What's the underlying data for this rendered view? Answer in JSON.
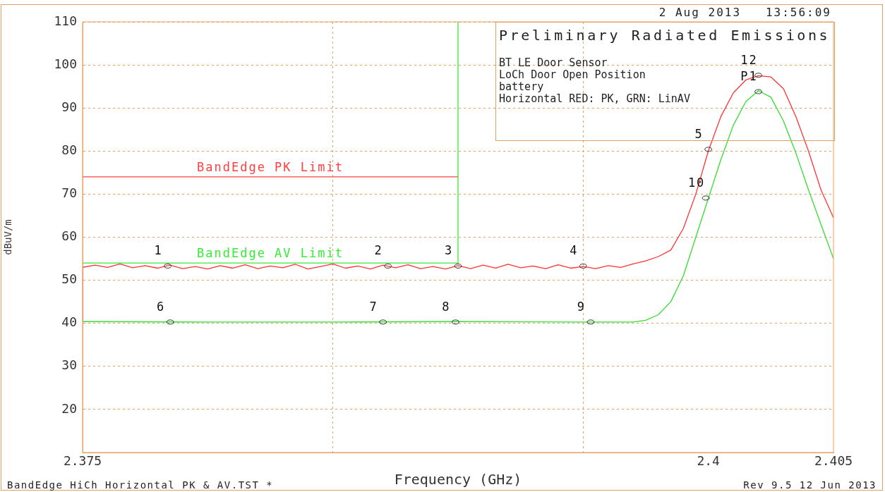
{
  "chart_data": {
    "type": "line",
    "title": "Preliminary Radiated Emissions",
    "xlabel": "Frequency (GHz)",
    "ylabel": "dBuV/m",
    "xlim": [
      2.375,
      2.405
    ],
    "xticks": [
      2.375,
      {
        "value": 2.385,
        "label": null
      },
      {
        "value": 2.395,
        "label": null
      },
      {
        "value": 2.4,
        "label": "2.4"
      },
      2.405
    ],
    "ylim": [
      10,
      110
    ],
    "yticks": [
      20,
      30,
      40,
      50,
      60,
      70,
      80,
      90,
      100,
      110
    ],
    "grid": true,
    "marker": "none",
    "line_style": "solid",
    "series": [
      {
        "name": "BandEdge PK Limit",
        "color": "#ff4040",
        "x": [
          2.375,
          2.39
        ],
        "values": [
          74,
          74
        ]
      },
      {
        "name": "BandEdge AV Limit",
        "color": "#33ee33",
        "x": [
          2.375,
          2.39,
          2.39
        ],
        "values": [
          54,
          54,
          110
        ]
      },
      {
        "color": "#ff3333",
        "x": [
          2.375,
          2.375,
          2.3755,
          2.376,
          2.3765,
          2.377,
          2.3775,
          2.378,
          2.3785,
          2.379,
          2.3795,
          2.38,
          2.3805,
          2.381,
          2.3815,
          2.382,
          2.3825,
          2.383,
          2.3835,
          2.384,
          2.3845,
          2.385,
          2.3855,
          2.386,
          2.3865,
          2.387,
          2.3875,
          2.388,
          2.3885,
          2.389,
          2.3895,
          2.39,
          2.3905,
          2.391,
          2.3915,
          2.392,
          2.3925,
          2.393,
          2.3935,
          2.394,
          2.3945,
          2.395,
          2.3955,
          2.396,
          2.3965,
          2.397,
          2.3975,
          2.398,
          2.3985,
          2.399,
          2.3995,
          2.4,
          2.4005,
          2.401,
          2.4015,
          2.402,
          2.4025,
          2.403,
          2.4035,
          2.404,
          2.4045,
          2.405
        ],
        "values": [
          40.5,
          53,
          53.5,
          53,
          53.8,
          52.9,
          53.4,
          52.8,
          53.5,
          52.7,
          53.2,
          52.6,
          53.4,
          52.8,
          53.6,
          52.7,
          53.3,
          52.9,
          53.7,
          52.6,
          53.2,
          53.8,
          52.8,
          53.3,
          52.6,
          53.5,
          52.9,
          53.6,
          52.7,
          53.2,
          52.6,
          53.4,
          52.7,
          53.5,
          52.8,
          53.7,
          52.9,
          53.3,
          52.7,
          53.6,
          52.8,
          53.2,
          52.7,
          53.4,
          53,
          53.8,
          54.5,
          55.5,
          57,
          62,
          70,
          80,
          88,
          93.5,
          96.5,
          97.5,
          97.2,
          94.5,
          88,
          80,
          71,
          64.5
        ]
      },
      {
        "color": "#33dd33",
        "x": [
          2.375,
          2.38,
          2.385,
          2.39,
          2.395,
          2.397,
          2.3975,
          2.398,
          2.3985,
          2.399,
          2.3995,
          2.4,
          2.4005,
          2.401,
          2.4015,
          2.402,
          2.4025,
          2.403,
          2.4035,
          2.404,
          2.4045,
          2.405
        ],
        "values": [
          40.4,
          40.3,
          40.3,
          40.4,
          40.3,
          40.3,
          40.7,
          42,
          45,
          51,
          60,
          69,
          78,
          86,
          91.5,
          94,
          92.5,
          87,
          79.5,
          71,
          63,
          55
        ]
      }
    ],
    "annotations": [
      "2 Aug 2013   13:56:09",
      "BT LE Door Sensor",
      "LoCh Door Open Position",
      "battery",
      "Horizontal RED: PK, GRN: LinAV",
      "BandEdge HiCh Horizontal PK & AV.TST *",
      "Rev 9.5 12 Jun 2013",
      {
        "text": "1",
        "x": 2.3784,
        "y": 53.3
      },
      {
        "text": "2",
        "x": 2.3872,
        "y": 53.3
      },
      {
        "text": "3",
        "x": 2.39,
        "y": 53.3
      },
      {
        "text": "4",
        "x": 2.395,
        "y": 53.3
      },
      {
        "text": "5",
        "x": 2.4,
        "y": 80.4
      },
      {
        "text": "6",
        "x": 2.3785,
        "y": 40.3
      },
      {
        "text": "7",
        "x": 2.387,
        "y": 40.3
      },
      {
        "text": "8",
        "x": 2.3899,
        "y": 40.3
      },
      {
        "text": "9",
        "x": 2.3953,
        "y": 40.3
      },
      {
        "text": "10",
        "x": 2.3999,
        "y": 69.1
      },
      {
        "text": "12",
        "x": 2.402,
        "y": 97.6
      },
      {
        "text": "P1",
        "x": 2.402,
        "y": 93.8
      }
    ]
  }
}
